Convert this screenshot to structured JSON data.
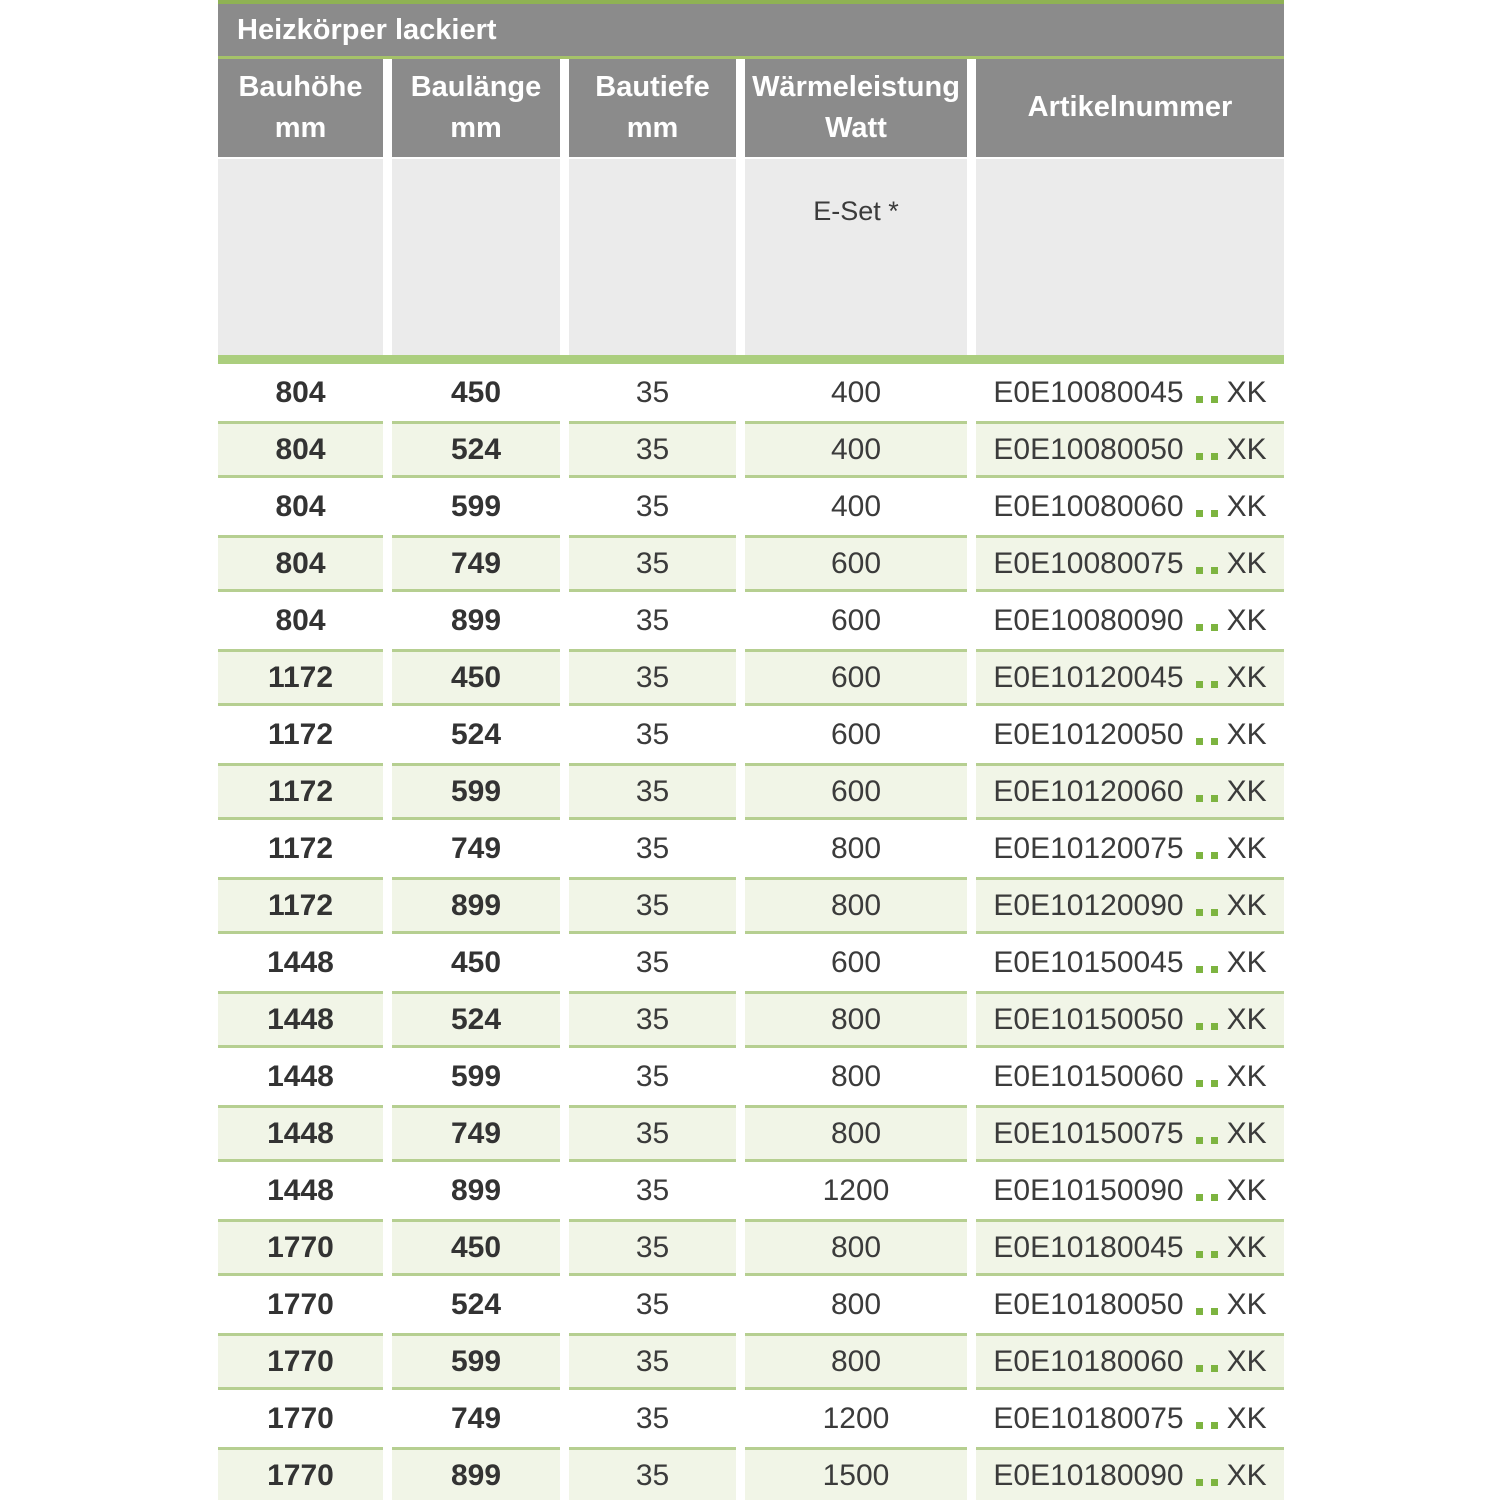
{
  "page": {
    "title": "Heizkörper lackiert"
  },
  "table": {
    "columns": [
      {
        "label": "Bauhöhe",
        "unit": "mm"
      },
      {
        "label": "Baulänge",
        "unit": "mm"
      },
      {
        "label": "Bautiefe",
        "unit": "mm"
      },
      {
        "label": "Wärmeleistung",
        "unit": "Watt"
      },
      {
        "label": "Artikelnummer",
        "unit": ""
      }
    ],
    "subheader": {
      "eset_label": "E-Set *"
    },
    "rows": [
      {
        "bauhoehe": "804",
        "baulaenge": "450",
        "bautiefe": "35",
        "watt": "400",
        "artikel_prefix": "E0E10080045",
        "artikel_suffix": "XK"
      },
      {
        "bauhoehe": "804",
        "baulaenge": "524",
        "bautiefe": "35",
        "watt": "400",
        "artikel_prefix": "E0E10080050",
        "artikel_suffix": "XK"
      },
      {
        "bauhoehe": "804",
        "baulaenge": "599",
        "bautiefe": "35",
        "watt": "400",
        "artikel_prefix": "E0E10080060",
        "artikel_suffix": "XK"
      },
      {
        "bauhoehe": "804",
        "baulaenge": "749",
        "bautiefe": "35",
        "watt": "600",
        "artikel_prefix": "E0E10080075",
        "artikel_suffix": "XK"
      },
      {
        "bauhoehe": "804",
        "baulaenge": "899",
        "bautiefe": "35",
        "watt": "600",
        "artikel_prefix": "E0E10080090",
        "artikel_suffix": "XK"
      },
      {
        "bauhoehe": "1172",
        "baulaenge": "450",
        "bautiefe": "35",
        "watt": "600",
        "artikel_prefix": "E0E10120045",
        "artikel_suffix": "XK"
      },
      {
        "bauhoehe": "1172",
        "baulaenge": "524",
        "bautiefe": "35",
        "watt": "600",
        "artikel_prefix": "E0E10120050",
        "artikel_suffix": "XK"
      },
      {
        "bauhoehe": "1172",
        "baulaenge": "599",
        "bautiefe": "35",
        "watt": "600",
        "artikel_prefix": "E0E10120060",
        "artikel_suffix": "XK"
      },
      {
        "bauhoehe": "1172",
        "baulaenge": "749",
        "bautiefe": "35",
        "watt": "800",
        "artikel_prefix": "E0E10120075",
        "artikel_suffix": "XK"
      },
      {
        "bauhoehe": "1172",
        "baulaenge": "899",
        "bautiefe": "35",
        "watt": "800",
        "artikel_prefix": "E0E10120090",
        "artikel_suffix": "XK"
      },
      {
        "bauhoehe": "1448",
        "baulaenge": "450",
        "bautiefe": "35",
        "watt": "600",
        "artikel_prefix": "E0E10150045",
        "artikel_suffix": "XK"
      },
      {
        "bauhoehe": "1448",
        "baulaenge": "524",
        "bautiefe": "35",
        "watt": "800",
        "artikel_prefix": "E0E10150050",
        "artikel_suffix": "XK"
      },
      {
        "bauhoehe": "1448",
        "baulaenge": "599",
        "bautiefe": "35",
        "watt": "800",
        "artikel_prefix": "E0E10150060",
        "artikel_suffix": "XK"
      },
      {
        "bauhoehe": "1448",
        "baulaenge": "749",
        "bautiefe": "35",
        "watt": "800",
        "artikel_prefix": "E0E10150075",
        "artikel_suffix": "XK"
      },
      {
        "bauhoehe": "1448",
        "baulaenge": "899",
        "bautiefe": "35",
        "watt": "1200",
        "artikel_prefix": "E0E10150090",
        "artikel_suffix": "XK"
      },
      {
        "bauhoehe": "1770",
        "baulaenge": "450",
        "bautiefe": "35",
        "watt": "800",
        "artikel_prefix": "E0E10180045",
        "artikel_suffix": "XK"
      },
      {
        "bauhoehe": "1770",
        "baulaenge": "524",
        "bautiefe": "35",
        "watt": "800",
        "artikel_prefix": "E0E10180050",
        "artikel_suffix": "XK"
      },
      {
        "bauhoehe": "1770",
        "baulaenge": "599",
        "bautiefe": "35",
        "watt": "800",
        "artikel_prefix": "E0E10180060",
        "artikel_suffix": "XK"
      },
      {
        "bauhoehe": "1770",
        "baulaenge": "749",
        "bautiefe": "35",
        "watt": "1200",
        "artikel_prefix": "E0E10180075",
        "artikel_suffix": "XK"
      },
      {
        "bauhoehe": "1770",
        "baulaenge": "899",
        "bautiefe": "35",
        "watt": "1500",
        "artikel_prefix": "E0E10180090",
        "artikel_suffix": "XK"
      }
    ]
  },
  "colors": {
    "header_gray": "#8b8b8b",
    "subheader_gray": "#ebebeb",
    "top_line_green": "#8fb254",
    "thin_line_green": "#a5c269",
    "separator_bar_green": "#abce7e",
    "row_alt_bg_green": "#f1f5e7",
    "row_alt_border_green": "#b6cf91",
    "dot_green": "#7db440",
    "text_dark": "#3b3b3b",
    "header_text": "#ffffff"
  }
}
